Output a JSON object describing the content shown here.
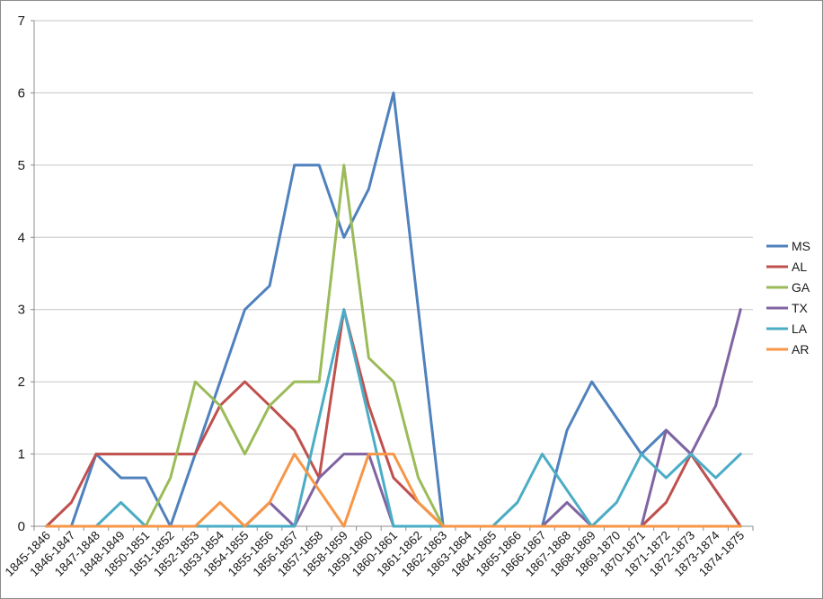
{
  "chart_data": {
    "type": "line",
    "title": "",
    "xlabel": "",
    "ylabel": "",
    "ylim": [
      0,
      7
    ],
    "yticks": [
      0,
      1,
      2,
      3,
      4,
      5,
      6,
      7
    ],
    "grid": "horizontal",
    "legend_position": "right",
    "categories": [
      "1845-1846",
      "1846-1847",
      "1847-1848",
      "1848-1849",
      "1850-1851",
      "1851-1852",
      "1852-1853",
      "1853-1854",
      "1854-1855",
      "1855-1856",
      "1856-1857",
      "1857-1858",
      "1858-1859",
      "1859-1860",
      "1860-1861",
      "1861-1862",
      "1862-1863",
      "1863-1864",
      "1864-1865",
      "1865-1866",
      "1866-1867",
      "1867-1868",
      "1868-1869",
      "1869-1870",
      "1870-1871",
      "1871-1872",
      "1872-1873",
      "1873-1874",
      "1874-1875"
    ],
    "series": [
      {
        "name": "MS",
        "color": "#4F81BD",
        "values": [
          0,
          0,
          1,
          0.67,
          0.67,
          0,
          1,
          2,
          3,
          3.33,
          5,
          5,
          4,
          4.67,
          6,
          3,
          0,
          0,
          0,
          0,
          0,
          1.33,
          2,
          1.5,
          1,
          1.33,
          1,
          0.5,
          0
        ]
      },
      {
        "name": "AL",
        "color": "#C0504D",
        "values": [
          0,
          0.33,
          1,
          1,
          1,
          1,
          1,
          1.67,
          2,
          1.67,
          1.33,
          0.67,
          3,
          1.67,
          0.67,
          0.33,
          0,
          0,
          0,
          0,
          0,
          0,
          0,
          0,
          0,
          0.33,
          1,
          0.5,
          0
        ]
      },
      {
        "name": "GA",
        "color": "#9BBB59",
        "values": [
          0,
          0,
          0,
          0,
          0,
          0.67,
          2,
          1.67,
          1,
          1.67,
          2,
          2,
          5,
          2.33,
          2,
          0.67,
          0,
          0,
          0,
          0,
          0,
          0,
          0,
          0,
          0,
          0,
          0,
          0,
          0
        ]
      },
      {
        "name": "TX",
        "color": "#8064A2",
        "values": [
          0,
          0,
          0,
          0,
          0,
          0,
          0,
          0,
          0,
          0.33,
          0,
          0.67,
          1,
          1,
          0,
          0,
          0,
          0,
          0,
          0,
          0,
          0.33,
          0,
          0,
          0,
          1.33,
          1,
          1.67,
          3
        ]
      },
      {
        "name": "LA",
        "color": "#4BACC6",
        "values": [
          0,
          0,
          0,
          0.33,
          0,
          0,
          0,
          0,
          0,
          0,
          0,
          1.5,
          3,
          1.5,
          0,
          0,
          0,
          0,
          0,
          0.33,
          1,
          0.5,
          0,
          0.33,
          1,
          0.67,
          1,
          0.67,
          1
        ]
      },
      {
        "name": "AR",
        "color": "#F79646",
        "values": [
          0,
          0,
          0,
          0,
          0,
          0,
          0,
          0.33,
          0,
          0.33,
          1,
          0.5,
          0,
          1,
          1,
          0.33,
          0,
          0,
          0,
          0,
          0,
          0,
          0,
          0,
          0,
          0,
          0,
          0,
          0
        ]
      }
    ],
    "colors": {
      "gridline": "#C6C6C6",
      "axis_line": "#8C8C8C",
      "tick_text": "#1a1a1a",
      "background": "#FFFFFF"
    }
  }
}
